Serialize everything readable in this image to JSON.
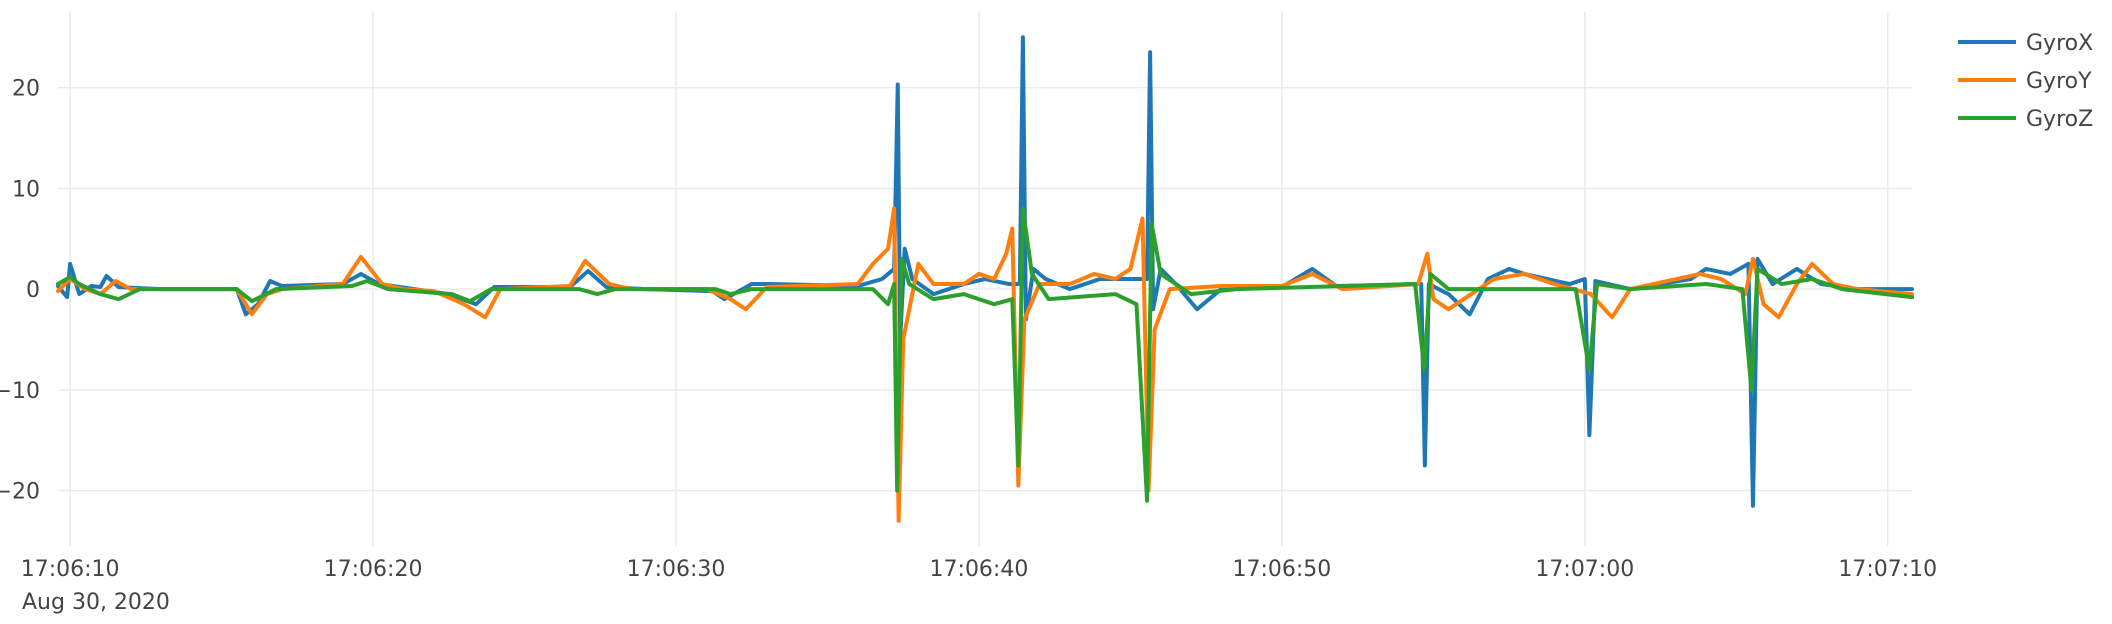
{
  "chart_data": {
    "type": "line",
    "title": "",
    "xlabel": "",
    "ylabel": "",
    "date_label": "Aug 30, 2020",
    "grid": true,
    "legend_position": "top-right",
    "xlim": [
      "17:06:09.6",
      "17:07:10.8"
    ],
    "ylim": [
      -25.5,
      27.5
    ],
    "x_ticks": [
      "17:06:10",
      "17:06:20",
      "17:06:30",
      "17:06:40",
      "17:06:50",
      "17:07:00",
      "17:07:10"
    ],
    "y_ticks": [
      20,
      10,
      0,
      -10,
      -20
    ],
    "y_tick_labels": [
      "20",
      "10",
      "0",
      "−10",
      "−20"
    ],
    "series": [
      {
        "name": "GyroX",
        "color": "#1f77b4",
        "points": [
          [
            "17:06:09.6",
            0.3
          ],
          [
            "17:06:09.9",
            -0.8
          ],
          [
            "17:06:10.0",
            2.5
          ],
          [
            "17:06:10.3",
            -0.5
          ],
          [
            "17:06:10.7",
            0.3
          ],
          [
            "17:06:11.0",
            0.2
          ],
          [
            "17:06:11.2",
            1.3
          ],
          [
            "17:06:11.6",
            0.2
          ],
          [
            "17:06:13.0",
            0.0
          ],
          [
            "17:06:15.5",
            0.0
          ],
          [
            "17:06:15.8",
            -2.5
          ],
          [
            "17:06:16.2",
            -1.5
          ],
          [
            "17:06:16.6",
            0.8
          ],
          [
            "17:06:17.0",
            0.3
          ],
          [
            "17:06:19.0",
            0.5
          ],
          [
            "17:06:19.6",
            1.5
          ],
          [
            "17:06:20.2",
            0.5
          ],
          [
            "17:06:22.5",
            -0.5
          ],
          [
            "17:06:23.4",
            -1.5
          ],
          [
            "17:06:24.0",
            0.2
          ],
          [
            "17:06:26.5",
            0.2
          ],
          [
            "17:06:27.1",
            1.8
          ],
          [
            "17:06:27.7",
            0.2
          ],
          [
            "17:06:29.0",
            0.0
          ],
          [
            "17:06:31.2",
            -0.2
          ],
          [
            "17:06:31.6",
            -1.0
          ],
          [
            "17:06:32.5",
            0.5
          ],
          [
            "17:06:33.1",
            0.5
          ],
          [
            "17:06:36.0",
            0.3
          ],
          [
            "17:06:36.8",
            1.0
          ],
          [
            "17:06:37.20",
            2.0
          ],
          [
            "17:06:37.32",
            20.3
          ],
          [
            "17:06:37.40",
            -5.0
          ],
          [
            "17:06:37.55",
            4.0
          ],
          [
            "17:06:37.80",
            1.0
          ],
          [
            "17:06:38.5",
            -0.5
          ],
          [
            "17:06:39.5",
            0.5
          ],
          [
            "17:06:40.2",
            1.0
          ],
          [
            "17:06:41.0",
            0.5
          ],
          [
            "17:06:41.35",
            0.5
          ],
          [
            "17:06:41.45",
            25.0
          ],
          [
            "17:06:41.55",
            -3.0
          ],
          [
            "17:06:41.80",
            2.0
          ],
          [
            "17:06:42.2",
            1.0
          ],
          [
            "17:06:43.0",
            0.0
          ],
          [
            "17:06:44.0",
            1.0
          ],
          [
            "17:06:45.0",
            1.0
          ],
          [
            "17:06:45.55",
            1.0
          ],
          [
            "17:06:45.65",
            23.5
          ],
          [
            "17:06:45.75",
            -2.0
          ],
          [
            "17:06:46.0",
            2.0
          ],
          [
            "17:06:46.5",
            0.5
          ],
          [
            "17:06:47.2",
            -2.0
          ],
          [
            "17:06:48.0",
            0.0
          ],
          [
            "17:06:50.0",
            0.2
          ],
          [
            "17:06:51.0",
            2.0
          ],
          [
            "17:06:51.8",
            0.3
          ],
          [
            "17:06:54.6",
            0.5
          ],
          [
            "17:06:54.72",
            -17.5
          ],
          [
            "17:06:54.85",
            0.5
          ],
          [
            "17:06:55.5",
            -0.5
          ],
          [
            "17:06:56.2",
            -2.5
          ],
          [
            "17:06:56.8",
            1.0
          ],
          [
            "17:06:57.5",
            2.0
          ],
          [
            "17:06:58.0",
            1.5
          ],
          [
            "17:06:59.5",
            0.5
          ],
          [
            "17:07:00.0",
            1.0
          ],
          [
            "17:07:00.15",
            -14.5
          ],
          [
            "17:07:00.35",
            0.8
          ],
          [
            "17:07:01.5",
            0.0
          ],
          [
            "17:07:03.5",
            1.0
          ],
          [
            "17:07:04.0",
            2.0
          ],
          [
            "17:07:04.8",
            1.5
          ],
          [
            "17:07:05.4",
            2.5
          ],
          [
            "17:07:05.55",
            -21.5
          ],
          [
            "17:07:05.70",
            3.0
          ],
          [
            "17:07:06.2",
            0.5
          ],
          [
            "17:07:07.0",
            2.0
          ],
          [
            "17:07:07.8",
            0.5
          ],
          [
            "17:07:09.0",
            0.0
          ],
          [
            "17:07:10.8",
            0.0
          ]
        ]
      },
      {
        "name": "GyroY",
        "color": "#ff7f0e",
        "points": [
          [
            "17:06:09.6",
            -0.2
          ],
          [
            "17:06:10.0",
            1.0
          ],
          [
            "17:06:10.5",
            0.0
          ],
          [
            "17:06:11.0",
            -0.5
          ],
          [
            "17:06:11.5",
            0.8
          ],
          [
            "17:06:12.0",
            0.0
          ],
          [
            "17:06:15.5",
            0.0
          ],
          [
            "17:06:16.0",
            -2.5
          ],
          [
            "17:06:16.5",
            -0.5
          ],
          [
            "17:06:17.0",
            0.0
          ],
          [
            "17:06:19.0",
            0.5
          ],
          [
            "17:06:19.6",
            3.2
          ],
          [
            "17:06:20.3",
            0.5
          ],
          [
            "17:06:21.0",
            0.0
          ],
          [
            "17:06:22.0",
            -0.2
          ],
          [
            "17:06:23.0",
            -1.5
          ],
          [
            "17:06:23.7",
            -2.8
          ],
          [
            "17:06:24.2",
            0.0
          ],
          [
            "17:06:26.5",
            0.3
          ],
          [
            "17:06:27.0",
            2.8
          ],
          [
            "17:06:27.8",
            0.5
          ],
          [
            "17:06:28.5",
            0.0
          ],
          [
            "17:06:31.0",
            0.0
          ],
          [
            "17:06:31.8",
            -1.0
          ],
          [
            "17:06:32.3",
            -2.0
          ],
          [
            "17:06:33.0",
            0.2
          ],
          [
            "17:06:36.0",
            0.5
          ],
          [
            "17:06:36.5",
            2.5
          ],
          [
            "17:06:37.0",
            4.0
          ],
          [
            "17:06:37.20",
            8.0
          ],
          [
            "17:06:37.35",
            -23.0
          ],
          [
            "17:06:37.50",
            -5.0
          ],
          [
            "17:06:38.0",
            2.5
          ],
          [
            "17:06:38.5",
            0.5
          ],
          [
            "17:06:39.5",
            0.5
          ],
          [
            "17:06:40.0",
            1.5
          ],
          [
            "17:06:40.5",
            1.0
          ],
          [
            "17:06:40.9",
            3.5
          ],
          [
            "17:06:41.1",
            6.0
          ],
          [
            "17:06:41.30",
            -19.5
          ],
          [
            "17:06:41.50",
            -3.0
          ],
          [
            "17:06:42.0",
            0.5
          ],
          [
            "17:06:43.0",
            0.5
          ],
          [
            "17:06:43.8",
            1.5
          ],
          [
            "17:06:44.5",
            1.0
          ],
          [
            "17:06:45.0",
            2.0
          ],
          [
            "17:06:45.4",
            7.0
          ],
          [
            "17:06:45.60",
            -20.0
          ],
          [
            "17:06:45.80",
            -4.0
          ],
          [
            "17:06:46.3",
            0.0
          ],
          [
            "17:06:48.0",
            0.3
          ],
          [
            "17:06:50.0",
            0.3
          ],
          [
            "17:06:51.0",
            1.5
          ],
          [
            "17:06:52.0",
            0.0
          ],
          [
            "17:06:54.5",
            0.5
          ],
          [
            "17:06:54.80",
            3.5
          ],
          [
            "17:06:55.0",
            -1.0
          ],
          [
            "17:06:55.5",
            -2.0
          ],
          [
            "17:06:56.0",
            -1.0
          ],
          [
            "17:06:57.0",
            1.0
          ],
          [
            "17:06:58.0",
            1.5
          ],
          [
            "17:06:59.0",
            0.5
          ],
          [
            "17:07:00.2",
            -0.5
          ],
          [
            "17:07:00.9",
            -2.8
          ],
          [
            "17:07:01.5",
            0.0
          ],
          [
            "17:07:03.8",
            1.5
          ],
          [
            "17:07:04.5",
            1.0
          ],
          [
            "17:07:05.3",
            -0.5
          ],
          [
            "17:07:05.55",
            3.0
          ],
          [
            "17:07:05.90",
            -1.5
          ],
          [
            "17:07:06.4",
            -2.8
          ],
          [
            "17:07:07.0",
            0.5
          ],
          [
            "17:07:07.5",
            2.5
          ],
          [
            "17:07:08.2",
            0.5
          ],
          [
            "17:07:09.0",
            0.0
          ],
          [
            "17:07:10.8",
            -0.5
          ]
        ]
      },
      {
        "name": "GyroZ",
        "color": "#2ca02c",
        "points": [
          [
            "17:06:09.6",
            0.5
          ],
          [
            "17:06:10.0",
            1.2
          ],
          [
            "17:06:10.3",
            0.5
          ],
          [
            "17:06:11.0",
            -0.5
          ],
          [
            "17:06:11.6",
            -1.0
          ],
          [
            "17:06:12.3",
            0.0
          ],
          [
            "17:06:15.5",
            0.0
          ],
          [
            "17:06:16.0",
            -1.2
          ],
          [
            "17:06:16.8",
            0.0
          ],
          [
            "17:06:19.3",
            0.3
          ],
          [
            "17:06:19.8",
            0.8
          ],
          [
            "17:06:20.5",
            0.0
          ],
          [
            "17:06:22.6",
            -0.5
          ],
          [
            "17:06:23.2",
            -1.2
          ],
          [
            "17:06:23.9",
            0.0
          ],
          [
            "17:06:26.8",
            0.0
          ],
          [
            "17:06:27.4",
            -0.5
          ],
          [
            "17:06:28.0",
            0.0
          ],
          [
            "17:06:31.3",
            0.0
          ],
          [
            "17:06:31.8",
            -0.5
          ],
          [
            "17:06:32.5",
            0.0
          ],
          [
            "17:06:36.5",
            0.0
          ],
          [
            "17:06:37.00",
            -1.5
          ],
          [
            "17:06:37.20",
            0.5
          ],
          [
            "17:06:37.30",
            -20.0
          ],
          [
            "17:06:37.45",
            3.0
          ],
          [
            "17:06:37.70",
            0.5
          ],
          [
            "17:06:38.5",
            -1.0
          ],
          [
            "17:06:39.5",
            -0.5
          ],
          [
            "17:06:40.5",
            -1.5
          ],
          [
            "17:06:41.10",
            -1.0
          ],
          [
            "17:06:41.30",
            -17.5
          ],
          [
            "17:06:41.45",
            8.0
          ],
          [
            "17:06:41.75",
            1.5
          ],
          [
            "17:06:42.3",
            -1.0
          ],
          [
            "17:06:44.5",
            -0.5
          ],
          [
            "17:06:45.20",
            -1.5
          ],
          [
            "17:06:45.55",
            -21.0
          ],
          [
            "17:06:45.70",
            6.5
          ],
          [
            "17:06:46.0",
            1.5
          ],
          [
            "17:06:47.0",
            -0.5
          ],
          [
            "17:06:48.5",
            0.0
          ],
          [
            "17:06:54.40",
            0.5
          ],
          [
            "17:06:54.70",
            -8.0
          ],
          [
            "17:06:54.90",
            1.5
          ],
          [
            "17:06:55.5",
            0.0
          ],
          [
            "17:06:59.7",
            0.0
          ],
          [
            "17:07:00.15",
            -8.0
          ],
          [
            "17:07:00.40",
            0.5
          ],
          [
            "17:07:01.5",
            0.0
          ],
          [
            "17:07:04.0",
            0.5
          ],
          [
            "17:07:05.20",
            0.0
          ],
          [
            "17:07:05.50",
            -10.0
          ],
          [
            "17:07:05.70",
            2.0
          ],
          [
            "17:07:06.5",
            0.5
          ],
          [
            "17:07:07.5",
            1.0
          ],
          [
            "17:07:08.5",
            0.0
          ],
          [
            "17:07:10.8",
            -0.8
          ]
        ]
      }
    ]
  }
}
